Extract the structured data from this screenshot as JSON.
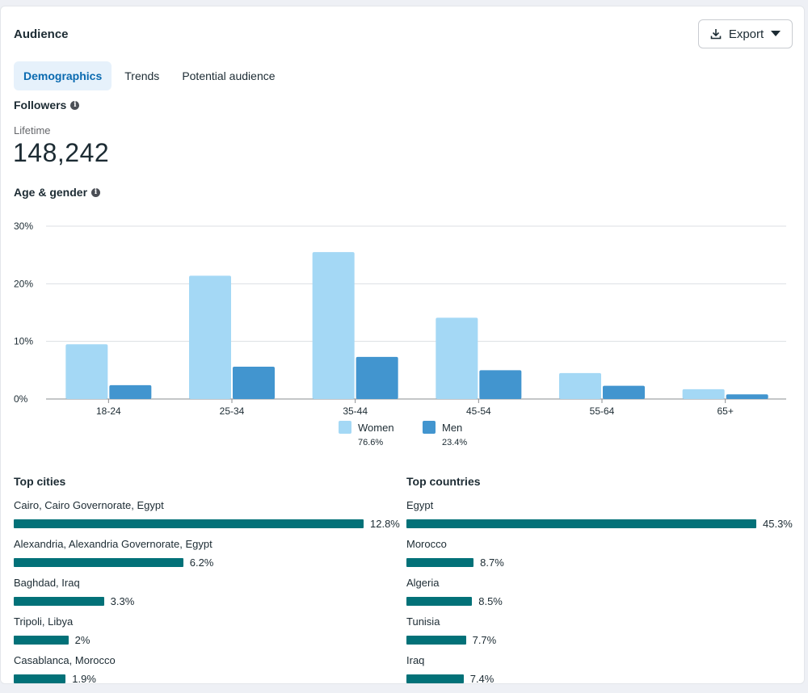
{
  "header": {
    "title": "Audience",
    "export_label": "Export"
  },
  "tabs": [
    {
      "label": "Demographics",
      "active": true
    },
    {
      "label": "Trends",
      "active": false
    },
    {
      "label": "Potential audience",
      "active": false
    }
  ],
  "followers": {
    "title": "Followers",
    "period": "Lifetime",
    "count": "148,242"
  },
  "age_gender": {
    "title": "Age & gender"
  },
  "colors": {
    "women": "#a4d8f5",
    "men": "#4295cf",
    "bar": "#027178",
    "accent": "#0a6ab0"
  },
  "chart_data": {
    "type": "bar",
    "categories": [
      "18-24",
      "25-34",
      "35-44",
      "45-54",
      "55-64",
      "65+"
    ],
    "series": [
      {
        "name": "Women",
        "values": [
          9.5,
          21.4,
          25.5,
          14.1,
          4.5,
          1.7
        ]
      },
      {
        "name": "Men",
        "values": [
          2.4,
          5.6,
          7.3,
          5.0,
          2.3,
          0.8
        ]
      }
    ],
    "yticks": [
      "0%",
      "10%",
      "20%",
      "30%"
    ],
    "ylim": [
      0,
      30
    ],
    "grid": true,
    "legend": "bottom-center"
  },
  "legend": [
    {
      "name": "Women",
      "pct": "76.6%"
    },
    {
      "name": "Men",
      "pct": "23.4%"
    }
  ],
  "top_cities": {
    "title": "Top cities",
    "items": [
      {
        "label": "Cairo, Cairo Governorate, Egypt",
        "pct": "12.8%",
        "value": 12.8
      },
      {
        "label": "Alexandria, Alexandria Governorate, Egypt",
        "pct": "6.2%",
        "value": 6.2
      },
      {
        "label": "Baghdad, Iraq",
        "pct": "3.3%",
        "value": 3.3
      },
      {
        "label": "Tripoli, Libya",
        "pct": "2%",
        "value": 2
      },
      {
        "label": "Casablanca, Morocco",
        "pct": "1.9%",
        "value": 1.9
      }
    ]
  },
  "top_countries": {
    "title": "Top countries",
    "items": [
      {
        "label": "Egypt",
        "pct": "45.3%",
        "value": 45.3
      },
      {
        "label": "Morocco",
        "pct": "8.7%",
        "value": 8.7
      },
      {
        "label": "Algeria",
        "pct": "8.5%",
        "value": 8.5
      },
      {
        "label": "Tunisia",
        "pct": "7.7%",
        "value": 7.7
      },
      {
        "label": "Iraq",
        "pct": "7.4%",
        "value": 7.4
      }
    ]
  }
}
